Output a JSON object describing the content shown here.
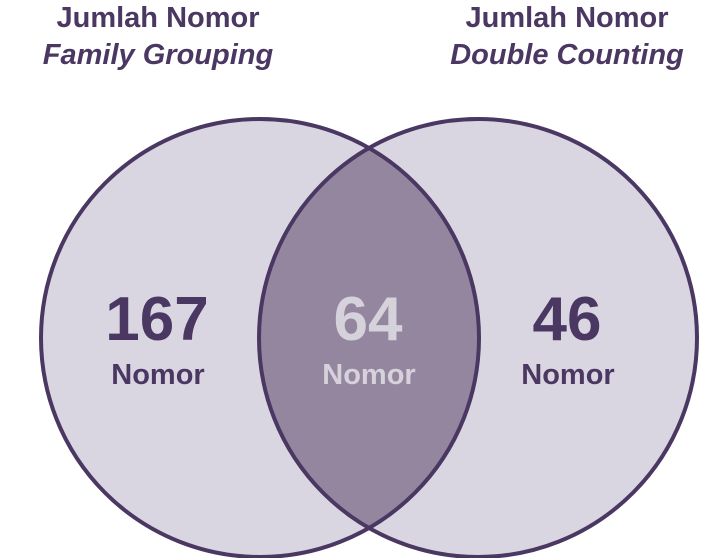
{
  "headers": {
    "left": {
      "line1": "Jumlah Nomor",
      "line2": "Family Grouping"
    },
    "right": {
      "line1": "Jumlah Nomor",
      "line2": "Double Counting"
    }
  },
  "regions": {
    "left_only": {
      "value": "167",
      "unit": "Nomor"
    },
    "intersection": {
      "value": "64",
      "unit": "Nomor"
    },
    "right_only": {
      "value": "46",
      "unit": "Nomor"
    }
  },
  "colors": {
    "circle_fill": "#dad6e1",
    "intersection_fill": "#94869f",
    "stroke": "#4a3762",
    "text_dark": "#4a3762",
    "text_light": "#d6d2dc"
  }
}
